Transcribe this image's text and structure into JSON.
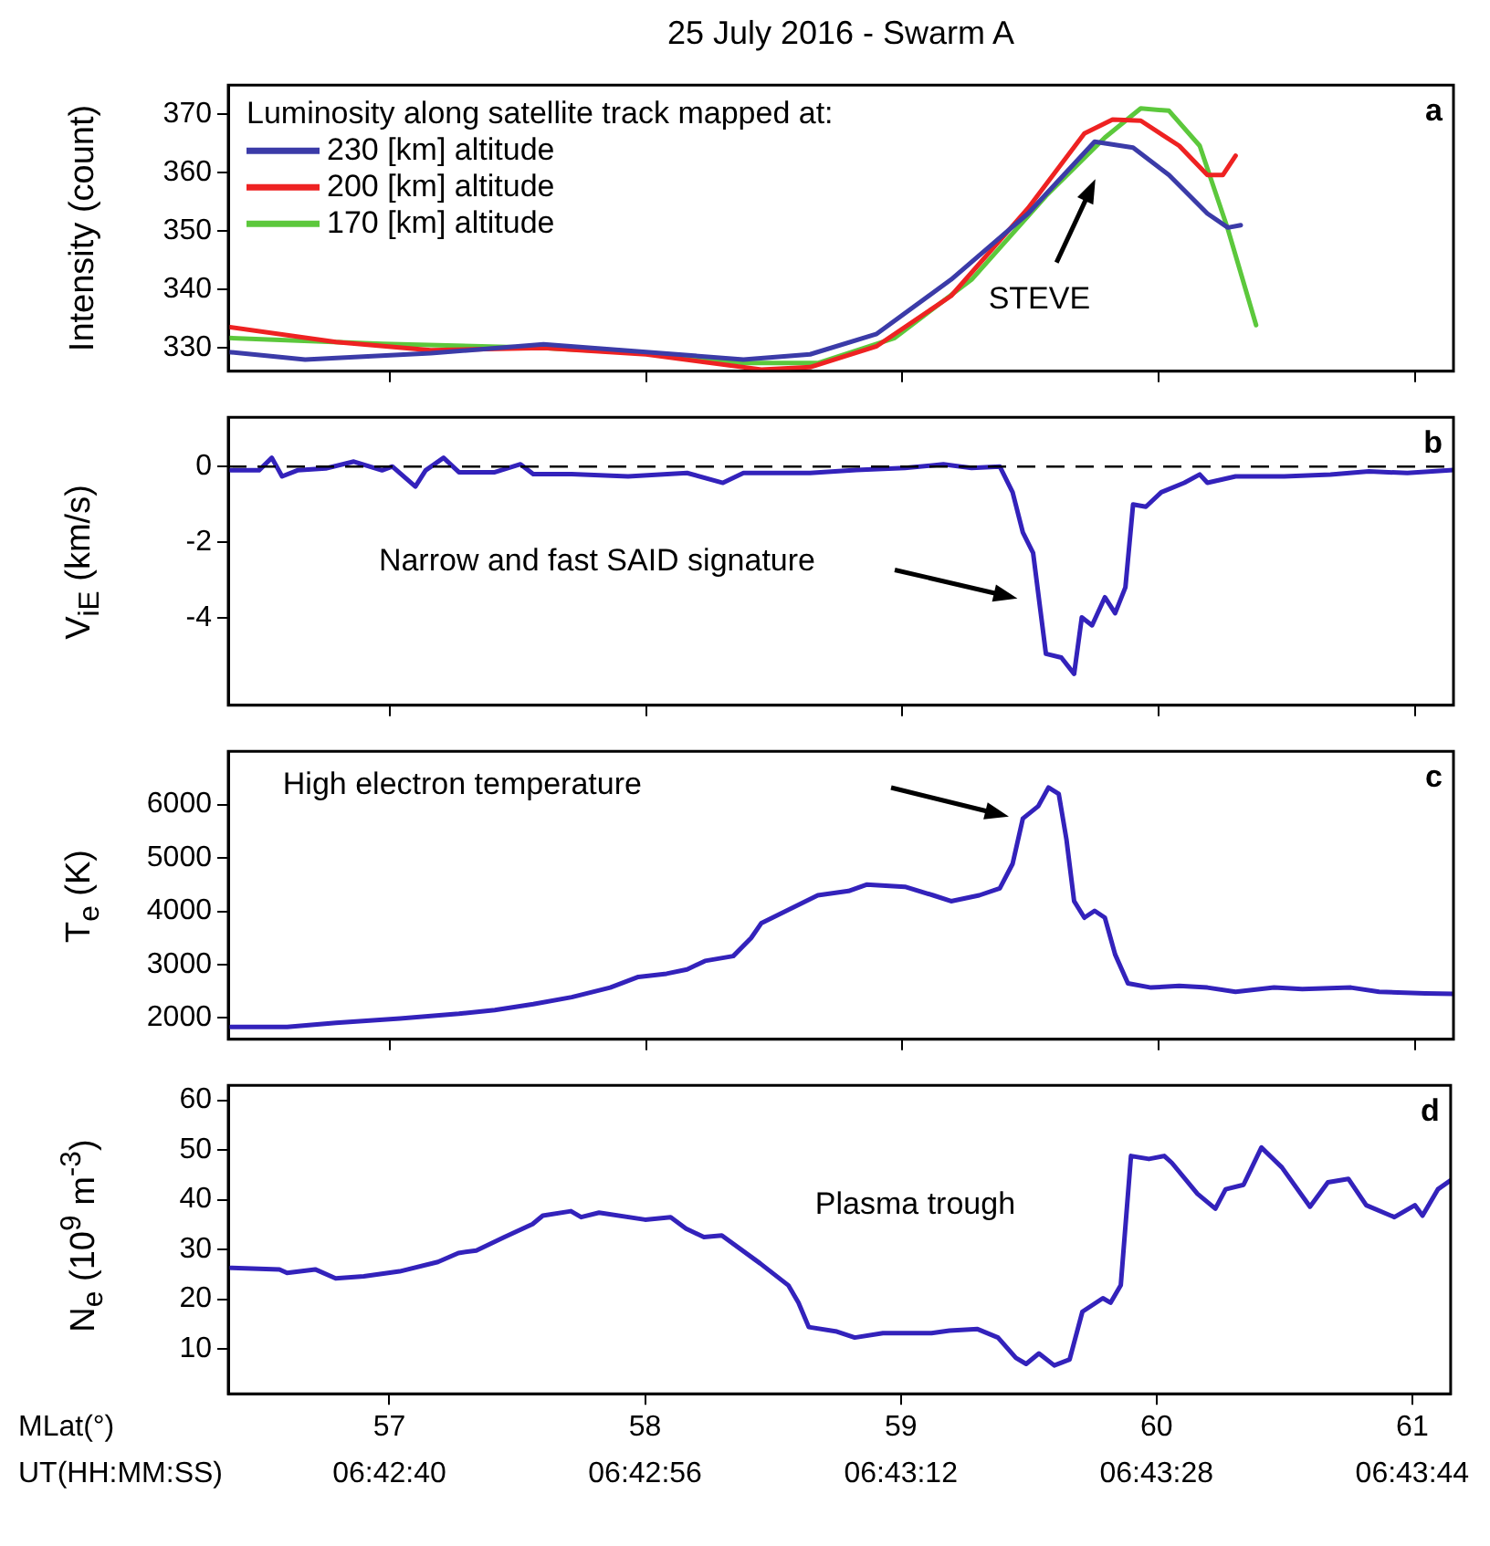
{
  "chart_data": [
    {
      "type": "line",
      "title": "25 July 2016 - Swarm A",
      "ylabel": "Intensity (count)",
      "legend_title": "Luminosity along satellite track mapped at:",
      "legend": "top left",
      "marker": "none",
      "line_style": "solid",
      "tick_labels": "y",
      "xlim": [
        56.37,
        61.15
      ],
      "xticks": [
        57,
        58,
        59,
        60,
        61
      ],
      "ylim": [
        326,
        375
      ],
      "yticks": [
        330,
        340,
        350,
        360,
        370
      ],
      "series": [
        {
          "name": "230 [km] altitude",
          "color": "#3b3ba8",
          "x": [
            56.37,
            56.67,
            57.16,
            57.6,
            58.0,
            58.38,
            58.64,
            58.9,
            59.19,
            59.49,
            59.75,
            59.9,
            60.04,
            60.19,
            60.27,
            60.32
          ],
          "values": [
            329.3,
            328.0,
            329.1,
            330.6,
            329.3,
            328.0,
            328.9,
            332.4,
            341.7,
            353.0,
            365.3,
            364.3,
            359.6,
            353.0,
            350.6,
            351.0
          ]
        },
        {
          "name": "200 [km] altitude",
          "color": "#ee2222",
          "x": [
            56.37,
            56.79,
            57.16,
            57.6,
            58.0,
            58.45,
            58.64,
            58.9,
            59.19,
            59.49,
            59.71,
            59.82,
            59.93,
            60.08,
            60.19,
            60.25,
            60.3
          ],
          "values": [
            333.6,
            331.0,
            329.6,
            330.0,
            328.9,
            326.3,
            326.7,
            330.3,
            338.9,
            353.9,
            366.7,
            369.1,
            368.9,
            364.6,
            359.6,
            359.6,
            362.9
          ]
        },
        {
          "name": "170 [km] altitude",
          "color": "#5cc83c",
          "x": [
            56.37,
            56.97,
            57.6,
            58.08,
            58.38,
            58.67,
            58.97,
            59.27,
            59.56,
            59.79,
            59.93,
            60.04,
            60.16,
            60.27,
            60.38
          ],
          "values": [
            331.7,
            330.7,
            330.0,
            328.9,
            327.4,
            327.4,
            331.7,
            341.7,
            356.0,
            366.0,
            371.0,
            370.6,
            364.6,
            350.3,
            333.9
          ]
        }
      ],
      "annotations": [
        "a",
        "STEVE"
      ]
    },
    {
      "type": "line",
      "ylabel": "V$_{iE}$ (km/s)",
      "marker": "none",
      "line_style": "solid",
      "tick_labels": "y",
      "xlim": [
        56.37,
        61.15
      ],
      "xticks": [
        57,
        58,
        59,
        60,
        61
      ],
      "ylim": [
        -6.3,
        1.3
      ],
      "yticks": [
        0,
        -2,
        -4
      ],
      "ref_lines": [
        {
          "axis": "y",
          "value": 0,
          "color": "#000000",
          "line_style": "dashed"
        }
      ],
      "series": [
        {
          "color": "#3322bb",
          "x": [
            56.38,
            56.49,
            56.54,
            56.58,
            56.64,
            56.75,
            56.86,
            56.97,
            57.01,
            57.1,
            57.14,
            57.21,
            57.27,
            57.41,
            57.51,
            57.56,
            57.71,
            57.93,
            58.16,
            58.3,
            58.38,
            58.64,
            58.82,
            59.01,
            59.16,
            59.27,
            59.38,
            59.43,
            59.47,
            59.51,
            59.56,
            59.62,
            59.67,
            59.7,
            59.74,
            59.79,
            59.83,
            59.87,
            59.9,
            59.95,
            60.01,
            60.1,
            60.16,
            60.19,
            60.3,
            60.49,
            60.67,
            60.82,
            60.97,
            61.15
          ],
          "values": [
            -0.1,
            -0.1,
            0.23,
            -0.26,
            -0.1,
            -0.05,
            0.13,
            -0.1,
            0.0,
            -0.53,
            -0.1,
            0.23,
            -0.15,
            -0.15,
            0.06,
            -0.2,
            -0.2,
            -0.26,
            -0.17,
            -0.43,
            -0.17,
            -0.17,
            -0.09,
            -0.04,
            0.06,
            -0.04,
            0.0,
            -0.68,
            -1.74,
            -2.28,
            -4.94,
            -5.04,
            -5.47,
            -3.98,
            -4.19,
            -3.45,
            -3.87,
            -3.19,
            -1.0,
            -1.06,
            -0.68,
            -0.43,
            -0.21,
            -0.43,
            -0.26,
            -0.26,
            -0.21,
            -0.13,
            -0.17,
            -0.09
          ]
        }
      ],
      "annotations": [
        "b",
        "Narrow and fast SAID signature"
      ]
    },
    {
      "type": "line",
      "ylabel": "T$_{e}$ (K)",
      "marker": "none",
      "line_style": "solid",
      "tick_labels": "y",
      "xlim": [
        56.37,
        61.15
      ],
      "xticks": [
        57,
        58,
        59,
        60,
        61
      ],
      "ylim": [
        1600,
        7000
      ],
      "yticks": [
        2000,
        3000,
        4000,
        5000,
        6000
      ],
      "series": [
        {
          "color": "#3322bb",
          "x": [
            56.38,
            56.6,
            56.79,
            57.04,
            57.27,
            57.41,
            57.56,
            57.71,
            57.86,
            57.97,
            58.08,
            58.16,
            58.23,
            58.34,
            58.41,
            58.45,
            58.56,
            58.67,
            58.79,
            58.86,
            59.01,
            59.12,
            59.19,
            59.3,
            59.38,
            59.43,
            59.47,
            59.53,
            59.57,
            59.61,
            59.64,
            59.67,
            59.71,
            59.75,
            59.79,
            59.83,
            59.88,
            59.97,
            60.08,
            60.19,
            60.3,
            60.45,
            60.56,
            60.75,
            60.86,
            61.04,
            61.15
          ],
          "values": [
            1830,
            1830,
            1910,
            1990,
            2080,
            2150,
            2260,
            2390,
            2570,
            2770,
            2830,
            2910,
            3070,
            3160,
            3500,
            3780,
            4040,
            4300,
            4380,
            4500,
            4460,
            4300,
            4190,
            4300,
            4430,
            4890,
            5740,
            5970,
            6320,
            6200,
            5350,
            4190,
            3880,
            4010,
            3880,
            3190,
            2650,
            2570,
            2600,
            2570,
            2490,
            2570,
            2540,
            2570,
            2490,
            2460,
            2450
          ]
        }
      ],
      "annotations": [
        "c",
        "High electron temperature"
      ]
    },
    {
      "type": "line",
      "ylabel": "N$_{e}$ (10$^{9}$ m$^{-3}$)",
      "xlabel": "MLat(°)",
      "x2label": "UT(HH:MM:SS)",
      "marker": "none",
      "line_style": "solid",
      "xlim": [
        56.37,
        61.15
      ],
      "xticks": [
        57,
        58,
        59,
        60,
        61
      ],
      "ylim": [
        1,
        63
      ],
      "yticks": [
        10,
        20,
        30,
        40,
        50,
        60
      ],
      "x2lim": [
        6.708311,
        6.729556
      ],
      "x2ticks": [
        {
          "value": 6.711111,
          "label": "06:42:40"
        },
        {
          "value": 6.715556,
          "label": "06:42:56"
        },
        {
          "value": 6.72,
          "label": "06:43:12"
        },
        {
          "value": 6.724444,
          "label": "06:43:28"
        },
        {
          "value": 6.728889,
          "label": "06:43:44"
        }
      ],
      "series": [
        {
          "color": "#3322bb",
          "x": [
            56.38,
            56.57,
            56.6,
            56.71,
            56.79,
            56.9,
            57.04,
            57.19,
            57.27,
            57.34,
            57.45,
            57.56,
            57.6,
            57.71,
            57.75,
            57.82,
            58.0,
            58.1,
            58.16,
            58.23,
            58.3,
            58.45,
            58.56,
            58.6,
            58.64,
            58.75,
            58.82,
            58.93,
            59.12,
            59.19,
            59.3,
            59.38,
            59.45,
            59.49,
            59.54,
            59.6,
            59.66,
            59.71,
            59.79,
            59.82,
            59.86,
            59.9,
            59.97,
            60.03,
            60.06,
            60.16,
            60.23,
            60.27,
            60.34,
            60.41,
            60.49,
            60.6,
            60.67,
            60.75,
            60.82,
            60.93,
            61.01,
            61.04,
            61.1,
            61.15
          ],
          "values": [
            26.3,
            26.0,
            25.3,
            26.0,
            24.2,
            24.6,
            25.6,
            27.5,
            29.3,
            29.8,
            32.5,
            35.1,
            36.8,
            37.7,
            36.5,
            37.4,
            36.0,
            36.5,
            34.2,
            32.5,
            32.8,
            27.2,
            22.8,
            19.3,
            14.4,
            13.5,
            12.3,
            13.2,
            13.2,
            13.7,
            14.0,
            12.3,
            8.2,
            7.0,
            9.1,
            6.7,
            7.9,
            17.5,
            20.2,
            19.3,
            22.8,
            48.8,
            48.2,
            48.8,
            47.4,
            41.2,
            38.2,
            42.1,
            43.0,
            50.5,
            46.5,
            38.6,
            43.5,
            44.2,
            38.9,
            36.5,
            38.9,
            36.8,
            42.1,
            43.9
          ]
        }
      ],
      "annotations": [
        "d",
        "Plasma trough"
      ]
    }
  ]
}
